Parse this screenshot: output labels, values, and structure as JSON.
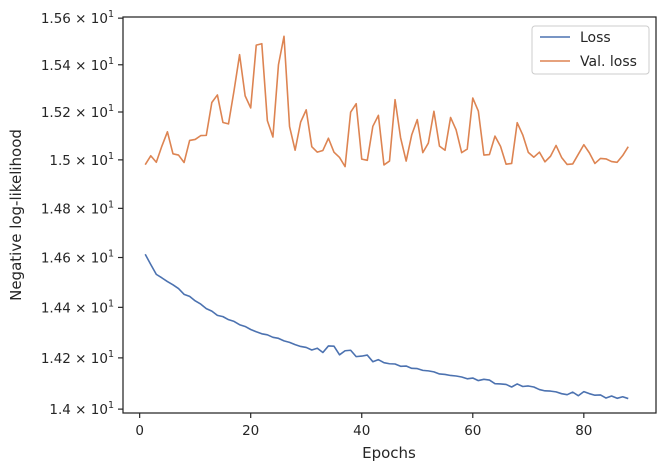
{
  "chart_data": {
    "type": "line",
    "title": "",
    "xlabel": "Epochs",
    "ylabel": "Negative log-likelihood",
    "y_scale": "log",
    "xlim": [
      -3,
      93
    ],
    "ylim": [
      13.985,
      15.605
    ],
    "x_ticks": [
      0,
      20,
      40,
      60,
      80
    ],
    "x_tick_labels": [
      "0",
      "20",
      "40",
      "60",
      "80"
    ],
    "y_ticks": [
      14.0,
      14.2,
      14.4,
      14.6,
      14.8,
      15.0,
      15.2,
      15.4,
      15.6
    ],
    "y_tick_labels": [
      {
        "mantissa": "1.4",
        "exp": "1"
      },
      {
        "mantissa": "1.42",
        "exp": "1"
      },
      {
        "mantissa": "1.44",
        "exp": "1"
      },
      {
        "mantissa": "1.46",
        "exp": "1"
      },
      {
        "mantissa": "1.48",
        "exp": "1"
      },
      {
        "mantissa": "1.5",
        "exp": "1"
      },
      {
        "mantissa": "1.52",
        "exp": "1"
      },
      {
        "mantissa": "1.54",
        "exp": "1"
      },
      {
        "mantissa": "1.56",
        "exp": "1"
      }
    ],
    "legend_position": "top-right",
    "grid": false,
    "series": [
      {
        "name": "Loss",
        "color": "#4c72b0",
        "x": [
          1,
          2,
          3,
          4,
          5,
          6,
          7,
          8,
          9,
          10,
          11,
          12,
          13,
          14,
          15,
          16,
          17,
          18,
          19,
          20,
          21,
          22,
          23,
          24,
          25,
          26,
          27,
          28,
          29,
          30,
          31,
          32,
          33,
          34,
          35,
          36,
          37,
          38,
          39,
          40,
          41,
          42,
          43,
          44,
          45,
          46,
          47,
          48,
          49,
          50,
          51,
          52,
          53,
          54,
          55,
          56,
          57,
          58,
          59,
          60,
          61,
          62,
          63,
          64,
          65,
          66,
          67,
          68,
          69,
          70,
          71,
          72,
          73,
          74,
          75,
          76,
          77,
          78,
          79,
          80,
          81,
          82,
          83,
          84,
          85,
          86,
          87,
          88
        ],
        "values": [
          14.613,
          14.572,
          14.532,
          14.518,
          14.503,
          14.49,
          14.475,
          14.452,
          14.444,
          14.426,
          14.413,
          14.395,
          14.385,
          14.368,
          14.363,
          14.351,
          14.344,
          14.331,
          14.324,
          14.312,
          14.303,
          14.295,
          14.291,
          14.281,
          14.277,
          14.267,
          14.261,
          14.252,
          14.245,
          14.241,
          14.231,
          14.238,
          14.221,
          14.247,
          14.246,
          14.212,
          14.228,
          14.23,
          14.205,
          14.207,
          14.211,
          14.185,
          14.193,
          14.181,
          14.177,
          14.176,
          14.167,
          14.168,
          14.159,
          14.158,
          14.151,
          14.149,
          14.145,
          14.137,
          14.135,
          14.131,
          14.129,
          14.125,
          14.118,
          14.121,
          14.111,
          14.116,
          14.113,
          14.099,
          14.098,
          14.096,
          14.086,
          14.098,
          14.088,
          14.09,
          14.086,
          14.076,
          14.071,
          14.07,
          14.067,
          14.06,
          14.056,
          14.066,
          14.052,
          14.068,
          14.06,
          14.054,
          14.055,
          14.043,
          14.051,
          14.042,
          14.048,
          14.041
        ]
      },
      {
        "name": "Val. loss",
        "color": "#dd8452",
        "x": [
          1,
          2,
          3,
          4,
          5,
          6,
          7,
          8,
          9,
          10,
          11,
          12,
          13,
          14,
          15,
          16,
          17,
          18,
          19,
          20,
          21,
          22,
          23,
          24,
          25,
          26,
          27,
          28,
          29,
          30,
          31,
          32,
          33,
          34,
          35,
          36,
          37,
          38,
          39,
          40,
          41,
          42,
          43,
          44,
          45,
          46,
          47,
          48,
          49,
          50,
          51,
          52,
          53,
          54,
          55,
          56,
          57,
          58,
          59,
          60,
          61,
          62,
          63,
          64,
          65,
          66,
          67,
          68,
          69,
          70,
          71,
          72,
          73,
          74,
          75,
          76,
          77,
          78,
          79,
          80,
          81,
          82,
          83,
          84,
          85,
          86,
          87,
          88
        ],
        "values": [
          14.98,
          15.017,
          14.99,
          15.057,
          15.117,
          15.025,
          15.02,
          14.989,
          15.081,
          15.085,
          15.101,
          15.102,
          15.24,
          15.272,
          15.156,
          15.15,
          15.29,
          15.443,
          15.268,
          15.217,
          15.484,
          15.49,
          15.164,
          15.095,
          15.4,
          15.522,
          15.139,
          15.04,
          15.158,
          15.209,
          15.055,
          15.032,
          15.039,
          15.09,
          15.032,
          15.01,
          14.972,
          15.199,
          15.235,
          15.003,
          14.998,
          15.14,
          15.186,
          14.979,
          14.995,
          15.252,
          15.092,
          14.995,
          15.104,
          15.168,
          15.03,
          15.07,
          15.203,
          15.057,
          15.04,
          15.177,
          15.125,
          15.03,
          15.045,
          15.259,
          15.204,
          15.02,
          15.022,
          15.099,
          15.056,
          14.982,
          14.985,
          15.155,
          15.104,
          15.031,
          15.011,
          15.032,
          14.992,
          15.015,
          15.06,
          15.01,
          14.981,
          14.983,
          15.023,
          15.063,
          15.029,
          14.985,
          15.006,
          15.004,
          14.993,
          14.99,
          15.018,
          15.055
        ]
      }
    ]
  }
}
